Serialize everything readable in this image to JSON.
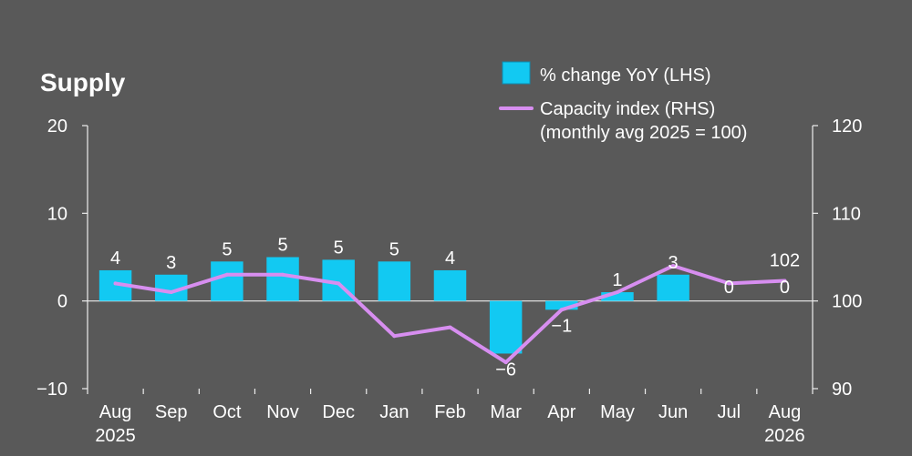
{
  "chart_data": {
    "type": "bar+line",
    "title": "Supply",
    "categories": [
      "Aug\n2025",
      "Sep",
      "Oct",
      "Nov",
      "Dec",
      "Jan",
      "Feb",
      "Mar",
      "Apr",
      "May",
      "Jun",
      "Jul",
      "Aug\n2026"
    ],
    "bar_series": {
      "name": "% change YoY (LHS)",
      "values": [
        3.5,
        3.0,
        4.5,
        5.0,
        4.7,
        4.5,
        3.5,
        -6.0,
        -1.0,
        1.0,
        3.0,
        0.0,
        0.0
      ],
      "labels": [
        "4",
        "3",
        "5",
        "5",
        "5",
        "5",
        "4",
        "−6",
        "−1",
        "1",
        "3",
        "0",
        "0"
      ]
    },
    "line_series": {
      "name_line1": "Capacity index (RHS)",
      "name_line2": "(monthly avg 2025 = 100)",
      "values": [
        102.0,
        101.0,
        103.0,
        103.0,
        102.0,
        96.0,
        97.0,
        93.0,
        99.0,
        101.0,
        104.0,
        102.0,
        102.3
      ],
      "end_label": "102"
    },
    "left_axis": {
      "ylim": [
        -10,
        20
      ],
      "ticks": [
        -10,
        0,
        10,
        20
      ],
      "tick_labels": [
        "−10",
        "0",
        "10",
        "20"
      ]
    },
    "right_axis": {
      "ylim": [
        90,
        120
      ],
      "ticks": [
        90,
        100,
        110,
        120
      ],
      "tick_labels": [
        "90",
        "100",
        "110",
        "120"
      ]
    },
    "colors": {
      "background": "#595959",
      "bar": "#12C9F2",
      "line": "#D78EF0",
      "text": "#FFFFFF",
      "axis": "#EDEDED"
    },
    "legend_position": "top-right",
    "grid": false
  }
}
